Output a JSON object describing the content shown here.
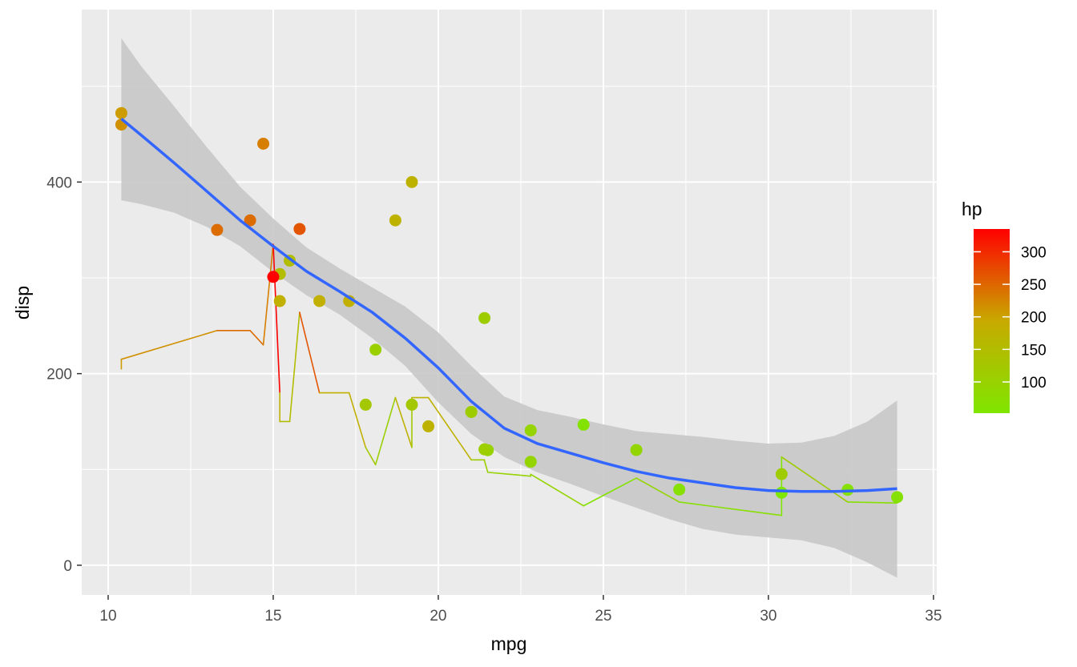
{
  "chart_data": {
    "type": "scatter",
    "xlabel": "mpg",
    "ylabel": "disp",
    "xlim": [
      9.2,
      35.1
    ],
    "ylim": [
      -31,
      580
    ],
    "x_ticks": [
      10,
      15,
      20,
      25,
      30,
      35
    ],
    "y_ticks": [
      0,
      200,
      400
    ],
    "x_tick_labels": [
      "10",
      "15",
      "20",
      "25",
      "30",
      "35"
    ],
    "y_tick_labels": [
      "0",
      "200",
      "400"
    ],
    "grid": true,
    "legend": {
      "title": "hp",
      "position": "right",
      "color_low": "#7fe600",
      "color_high": "#ff0000",
      "min": 52,
      "max": 335,
      "breaks": [
        100,
        150,
        200,
        250,
        300
      ],
      "labels": [
        "100",
        "150",
        "200",
        "250",
        "300"
      ]
    },
    "points": [
      {
        "mpg": 21.0,
        "disp": 160,
        "hp": 110
      },
      {
        "mpg": 21.0,
        "disp": 160,
        "hp": 110
      },
      {
        "mpg": 22.8,
        "disp": 108,
        "hp": 93
      },
      {
        "mpg": 21.4,
        "disp": 258,
        "hp": 110
      },
      {
        "mpg": 18.7,
        "disp": 360,
        "hp": 175
      },
      {
        "mpg": 18.1,
        "disp": 225,
        "hp": 105
      },
      {
        "mpg": 14.3,
        "disp": 360,
        "hp": 245
      },
      {
        "mpg": 24.4,
        "disp": 146.7,
        "hp": 62
      },
      {
        "mpg": 22.8,
        "disp": 140.8,
        "hp": 95
      },
      {
        "mpg": 19.2,
        "disp": 167.6,
        "hp": 123
      },
      {
        "mpg": 17.8,
        "disp": 167.6,
        "hp": 123
      },
      {
        "mpg": 16.4,
        "disp": 275.8,
        "hp": 180
      },
      {
        "mpg": 17.3,
        "disp": 275.8,
        "hp": 180
      },
      {
        "mpg": 15.2,
        "disp": 275.8,
        "hp": 180
      },
      {
        "mpg": 10.4,
        "disp": 472,
        "hp": 205
      },
      {
        "mpg": 10.4,
        "disp": 460,
        "hp": 215
      },
      {
        "mpg": 14.7,
        "disp": 440,
        "hp": 230
      },
      {
        "mpg": 32.4,
        "disp": 78.7,
        "hp": 66
      },
      {
        "mpg": 30.4,
        "disp": 75.7,
        "hp": 52
      },
      {
        "mpg": 33.9,
        "disp": 71.1,
        "hp": 65
      },
      {
        "mpg": 21.5,
        "disp": 120.1,
        "hp": 97
      },
      {
        "mpg": 15.5,
        "disp": 318,
        "hp": 150
      },
      {
        "mpg": 15.2,
        "disp": 304,
        "hp": 150
      },
      {
        "mpg": 13.3,
        "disp": 350,
        "hp": 245
      },
      {
        "mpg": 19.2,
        "disp": 400,
        "hp": 175
      },
      {
        "mpg": 27.3,
        "disp": 79,
        "hp": 66
      },
      {
        "mpg": 26.0,
        "disp": 120.3,
        "hp": 91
      },
      {
        "mpg": 30.4,
        "disp": 95.1,
        "hp": 113
      },
      {
        "mpg": 15.8,
        "disp": 351,
        "hp": 264
      },
      {
        "mpg": 19.7,
        "disp": 145,
        "hp": 175
      },
      {
        "mpg": 15.0,
        "disp": 301,
        "hp": 335
      },
      {
        "mpg": 21.4,
        "disp": 121,
        "hp": 109
      }
    ],
    "line_series": {
      "name": "hp",
      "path": [
        {
          "mpg": 10.4,
          "disp": 205
        },
        {
          "mpg": 10.4,
          "disp": 215
        },
        {
          "mpg": 13.3,
          "disp": 245
        },
        {
          "mpg": 14.3,
          "disp": 245
        },
        {
          "mpg": 14.7,
          "disp": 230
        },
        {
          "mpg": 15.0,
          "disp": 335
        },
        {
          "mpg": 15.2,
          "disp": 180
        },
        {
          "mpg": 15.2,
          "disp": 150
        },
        {
          "mpg": 15.5,
          "disp": 150
        },
        {
          "mpg": 15.8,
          "disp": 264
        },
        {
          "mpg": 16.4,
          "disp": 180
        },
        {
          "mpg": 17.3,
          "disp": 180
        },
        {
          "mpg": 17.8,
          "disp": 123
        },
        {
          "mpg": 18.1,
          "disp": 105
        },
        {
          "mpg": 18.7,
          "disp": 175
        },
        {
          "mpg": 19.2,
          "disp": 123
        },
        {
          "mpg": 19.2,
          "disp": 175
        },
        {
          "mpg": 19.7,
          "disp": 175
        },
        {
          "mpg": 21.0,
          "disp": 110
        },
        {
          "mpg": 21.0,
          "disp": 110
        },
        {
          "mpg": 21.4,
          "disp": 110
        },
        {
          "mpg": 21.4,
          "disp": 109
        },
        {
          "mpg": 21.5,
          "disp": 97
        },
        {
          "mpg": 22.8,
          "disp": 93
        },
        {
          "mpg": 22.8,
          "disp": 95
        },
        {
          "mpg": 24.4,
          "disp": 62
        },
        {
          "mpg": 26.0,
          "disp": 91
        },
        {
          "mpg": 27.3,
          "disp": 66
        },
        {
          "mpg": 30.4,
          "disp": 52
        },
        {
          "mpg": 30.4,
          "disp": 113
        },
        {
          "mpg": 32.4,
          "disp": 66
        },
        {
          "mpg": 33.9,
          "disp": 65
        }
      ]
    },
    "smooth": {
      "method": "loess",
      "color": "#3366ff",
      "ribbon_color": "#c8c8c8",
      "points": [
        {
          "x": 10.4,
          "y": 466,
          "lo": 381,
          "hi": 550
        },
        {
          "x": 11.0,
          "y": 449,
          "lo": 377,
          "hi": 521
        },
        {
          "x": 12.0,
          "y": 420,
          "lo": 368,
          "hi": 479
        },
        {
          "x": 13.0,
          "y": 390,
          "lo": 353,
          "hi": 436
        },
        {
          "x": 14.0,
          "y": 360,
          "lo": 333,
          "hi": 395
        },
        {
          "x": 15.0,
          "y": 333,
          "lo": 306,
          "hi": 362
        },
        {
          "x": 16.0,
          "y": 307,
          "lo": 282,
          "hi": 332
        },
        {
          "x": 17.0,
          "y": 286,
          "lo": 262,
          "hi": 310
        },
        {
          "x": 18.0,
          "y": 264,
          "lo": 237,
          "hi": 290
        },
        {
          "x": 19.0,
          "y": 237,
          "lo": 208,
          "hi": 270
        },
        {
          "x": 20.0,
          "y": 206,
          "lo": 170,
          "hi": 243
        },
        {
          "x": 21.0,
          "y": 171,
          "lo": 137,
          "hi": 208
        },
        {
          "x": 22.0,
          "y": 143,
          "lo": 113,
          "hi": 176
        },
        {
          "x": 23.0,
          "y": 127,
          "lo": 97,
          "hi": 162
        },
        {
          "x": 24.0,
          "y": 117,
          "lo": 85,
          "hi": 155
        },
        {
          "x": 25.0,
          "y": 107,
          "lo": 72,
          "hi": 147
        },
        {
          "x": 26.0,
          "y": 98,
          "lo": 60,
          "hi": 140
        },
        {
          "x": 27.0,
          "y": 91,
          "lo": 48,
          "hi": 137
        },
        {
          "x": 28.0,
          "y": 86,
          "lo": 38,
          "hi": 134
        },
        {
          "x": 29.0,
          "y": 81,
          "lo": 32,
          "hi": 130
        },
        {
          "x": 30.0,
          "y": 78,
          "lo": 29,
          "hi": 127
        },
        {
          "x": 31.0,
          "y": 77,
          "lo": 26,
          "hi": 128
        },
        {
          "x": 32.0,
          "y": 77,
          "lo": 18,
          "hi": 135
        },
        {
          "x": 33.0,
          "y": 78,
          "lo": 3,
          "hi": 150
        },
        {
          "x": 33.9,
          "y": 80,
          "lo": -13,
          "hi": 172
        }
      ]
    }
  }
}
